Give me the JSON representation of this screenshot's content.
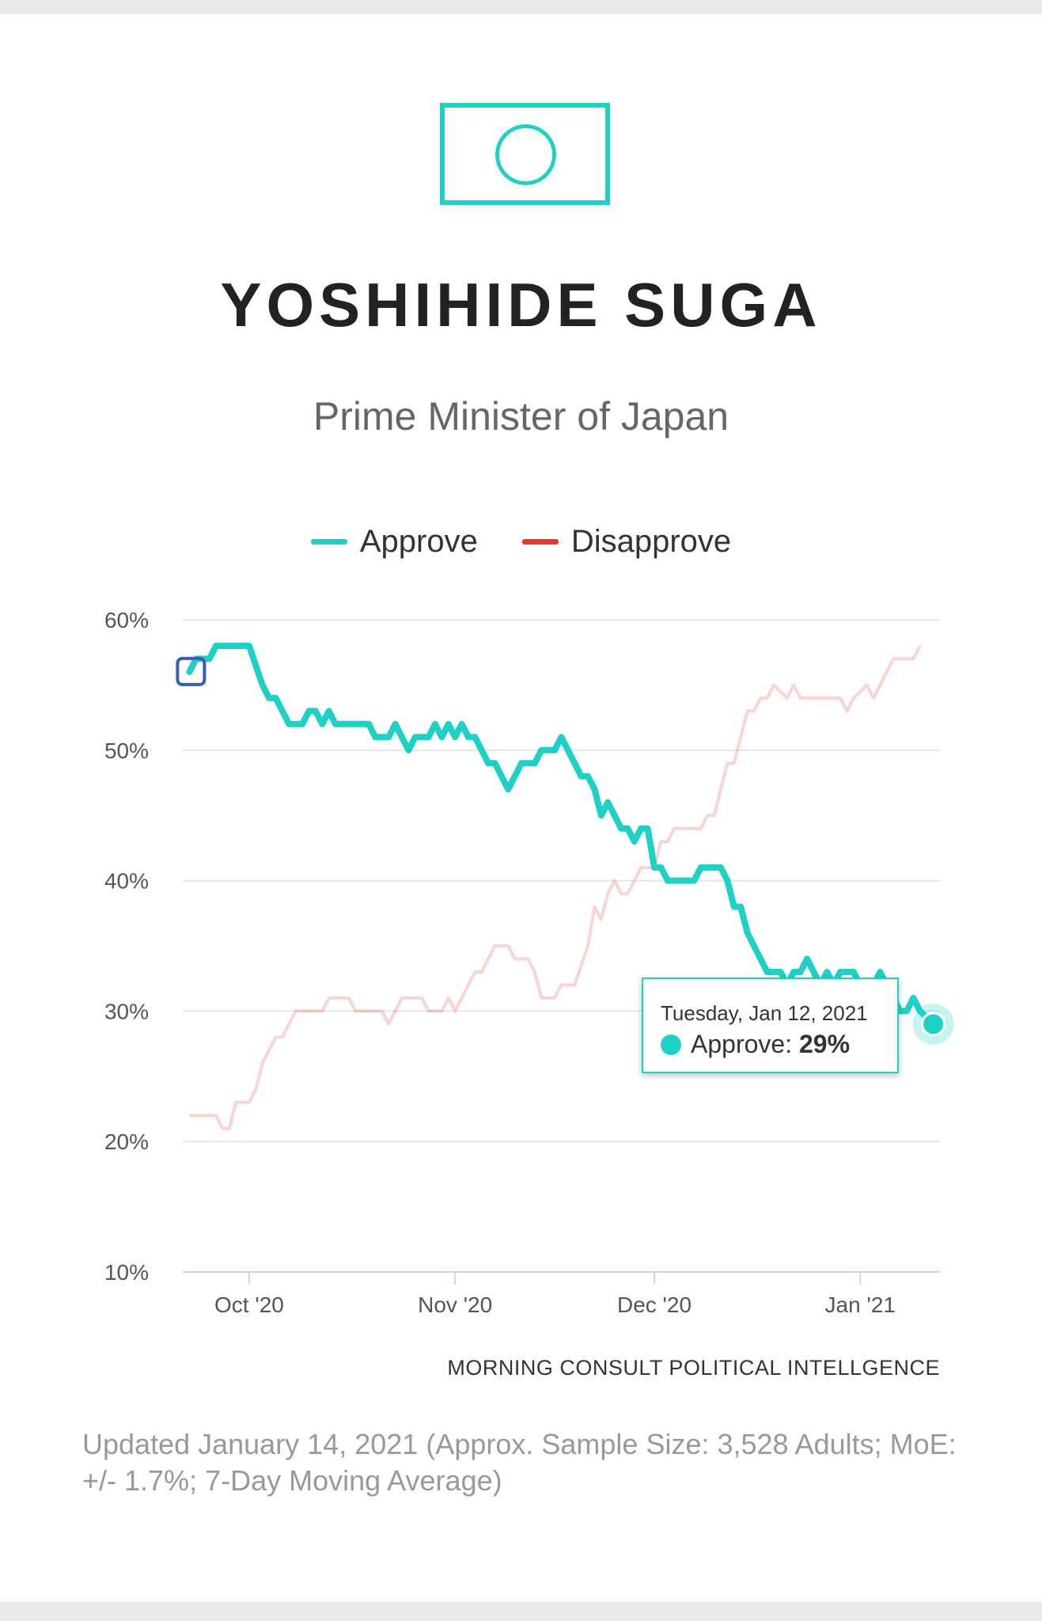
{
  "header": {
    "flag_icon": "japan-flag-icon",
    "name": "YOSHIHIDE SUGA",
    "role": "Prime Minister of Japan"
  },
  "legend": {
    "items": [
      {
        "label": "Approve",
        "color": "#1fd1c4"
      },
      {
        "label": "Disapprove",
        "color": "#e53935"
      }
    ]
  },
  "tooltip": {
    "date": "Tuesday, Jan 12, 2021",
    "series": "Approve",
    "value": "29%"
  },
  "source": "MORNING CONSULT POLITICAL INTELLGENCE",
  "footnote": "Updated January 14, 2021 (Approx. Sample Size: 3,528 Adults; MoE: +/- 1.7%; 7-Day Moving Average)",
  "chart_data": {
    "type": "line",
    "title": "",
    "xlabel": "",
    "ylabel": "",
    "ylim": [
      10,
      60
    ],
    "yticks": [
      10,
      20,
      30,
      40,
      50,
      60
    ],
    "ytick_labels": [
      "10%",
      "20%",
      "30%",
      "40%",
      "50%",
      "60%"
    ],
    "xticks": [
      {
        "date": "2020-10-01",
        "label": "Oct '20"
      },
      {
        "date": "2020-11-01",
        "label": "Nov '20"
      },
      {
        "date": "2020-12-01",
        "label": "Dec '20"
      },
      {
        "date": "2021-01-01",
        "label": "Jan '21"
      }
    ],
    "xlim": [
      "2020-09-21",
      "2021-01-13"
    ],
    "grid": true,
    "legend": "top-center",
    "series": [
      {
        "name": "Approve",
        "color": "#1fd1c4",
        "points": [
          [
            "2020-09-22",
            56
          ],
          [
            "2020-09-23",
            57
          ],
          [
            "2020-09-25",
            57
          ],
          [
            "2020-09-26",
            58
          ],
          [
            "2020-09-28",
            58
          ],
          [
            "2020-09-30",
            58
          ],
          [
            "2020-10-01",
            58
          ],
          [
            "2020-10-03",
            55
          ],
          [
            "2020-10-04",
            54
          ],
          [
            "2020-10-05",
            54
          ],
          [
            "2020-10-07",
            52
          ],
          [
            "2020-10-09",
            52
          ],
          [
            "2020-10-10",
            53
          ],
          [
            "2020-10-11",
            53
          ],
          [
            "2020-10-12",
            52
          ],
          [
            "2020-10-13",
            53
          ],
          [
            "2020-10-14",
            52
          ],
          [
            "2020-10-16",
            52
          ],
          [
            "2020-10-19",
            52
          ],
          [
            "2020-10-20",
            51
          ],
          [
            "2020-10-22",
            51
          ],
          [
            "2020-10-23",
            52
          ],
          [
            "2020-10-25",
            50
          ],
          [
            "2020-10-26",
            51
          ],
          [
            "2020-10-28",
            51
          ],
          [
            "2020-10-29",
            52
          ],
          [
            "2020-10-30",
            51
          ],
          [
            "2020-10-31",
            52
          ],
          [
            "2020-11-01",
            51
          ],
          [
            "2020-11-02",
            52
          ],
          [
            "2020-11-03",
            51
          ],
          [
            "2020-11-04",
            51
          ],
          [
            "2020-11-06",
            49
          ],
          [
            "2020-11-07",
            49
          ],
          [
            "2020-11-09",
            47
          ],
          [
            "2020-11-11",
            49
          ],
          [
            "2020-11-13",
            49
          ],
          [
            "2020-11-14",
            50
          ],
          [
            "2020-11-16",
            50
          ],
          [
            "2020-11-17",
            51
          ],
          [
            "2020-11-19",
            49
          ],
          [
            "2020-11-20",
            48
          ],
          [
            "2020-11-21",
            48
          ],
          [
            "2020-11-22",
            47
          ],
          [
            "2020-11-23",
            45
          ],
          [
            "2020-11-24",
            46
          ],
          [
            "2020-11-26",
            44
          ],
          [
            "2020-11-27",
            44
          ],
          [
            "2020-11-28",
            43
          ],
          [
            "2020-11-29",
            44
          ],
          [
            "2020-11-30",
            44
          ],
          [
            "2020-12-01",
            41
          ],
          [
            "2020-12-02",
            41
          ],
          [
            "2020-12-03",
            40
          ],
          [
            "2020-12-05",
            40
          ],
          [
            "2020-12-07",
            40
          ],
          [
            "2020-12-08",
            41
          ],
          [
            "2020-12-11",
            41
          ],
          [
            "2020-12-12",
            40
          ],
          [
            "2020-12-13",
            38
          ],
          [
            "2020-12-14",
            38
          ],
          [
            "2020-12-15",
            36
          ],
          [
            "2020-12-17",
            34
          ],
          [
            "2020-12-18",
            33
          ],
          [
            "2020-12-20",
            33
          ],
          [
            "2020-12-21",
            32
          ],
          [
            "2020-12-22",
            33
          ],
          [
            "2020-12-23",
            33
          ],
          [
            "2020-12-24",
            34
          ],
          [
            "2020-12-25",
            33
          ],
          [
            "2020-12-26",
            32
          ],
          [
            "2020-12-27",
            33
          ],
          [
            "2020-12-28",
            32
          ],
          [
            "2020-12-29",
            33
          ],
          [
            "2020-12-31",
            33
          ],
          [
            "2021-01-01",
            32
          ],
          [
            "2021-01-02",
            32
          ],
          [
            "2021-01-03",
            32
          ],
          [
            "2021-01-04",
            33
          ],
          [
            "2021-01-05",
            32
          ],
          [
            "2021-01-06",
            31
          ],
          [
            "2021-01-07",
            30
          ],
          [
            "2021-01-08",
            30
          ],
          [
            "2021-01-09",
            31
          ],
          [
            "2021-01-10",
            30
          ],
          [
            "2021-01-12",
            29
          ]
        ]
      },
      {
        "name": "Disapprove",
        "color": "#e53935",
        "points": [
          [
            "2020-09-22",
            22
          ],
          [
            "2020-09-26",
            22
          ],
          [
            "2020-09-27",
            21
          ],
          [
            "2020-09-28",
            21
          ],
          [
            "2020-09-29",
            23
          ],
          [
            "2020-10-01",
            23
          ],
          [
            "2020-10-02",
            24
          ],
          [
            "2020-10-03",
            26
          ],
          [
            "2020-10-05",
            28
          ],
          [
            "2020-10-06",
            28
          ],
          [
            "2020-10-08",
            30
          ],
          [
            "2020-10-10",
            30
          ],
          [
            "2020-10-12",
            30
          ],
          [
            "2020-10-13",
            31
          ],
          [
            "2020-10-16",
            31
          ],
          [
            "2020-10-17",
            30
          ],
          [
            "2020-10-21",
            30
          ],
          [
            "2020-10-22",
            29
          ],
          [
            "2020-10-24",
            31
          ],
          [
            "2020-10-27",
            31
          ],
          [
            "2020-10-28",
            30
          ],
          [
            "2020-10-30",
            30
          ],
          [
            "2020-10-31",
            31
          ],
          [
            "2020-11-01",
            30
          ],
          [
            "2020-11-03",
            32
          ],
          [
            "2020-11-04",
            33
          ],
          [
            "2020-11-05",
            33
          ],
          [
            "2020-11-07",
            35
          ],
          [
            "2020-11-09",
            35
          ],
          [
            "2020-11-10",
            34
          ],
          [
            "2020-11-12",
            34
          ],
          [
            "2020-11-13",
            33
          ],
          [
            "2020-11-14",
            31
          ],
          [
            "2020-11-16",
            31
          ],
          [
            "2020-11-17",
            32
          ],
          [
            "2020-11-19",
            32
          ],
          [
            "2020-11-21",
            35
          ],
          [
            "2020-11-22",
            38
          ],
          [
            "2020-11-23",
            37
          ],
          [
            "2020-11-24",
            39
          ],
          [
            "2020-11-25",
            40
          ],
          [
            "2020-11-26",
            39
          ],
          [
            "2020-11-27",
            39
          ],
          [
            "2020-11-29",
            41
          ],
          [
            "2020-12-01",
            41
          ],
          [
            "2020-12-02",
            43
          ],
          [
            "2020-12-03",
            43
          ],
          [
            "2020-12-04",
            44
          ],
          [
            "2020-12-07",
            44
          ],
          [
            "2020-12-08",
            44
          ],
          [
            "2020-12-09",
            45
          ],
          [
            "2020-12-10",
            45
          ],
          [
            "2020-12-11",
            47
          ],
          [
            "2020-12-12",
            49
          ],
          [
            "2020-12-13",
            49
          ],
          [
            "2020-12-15",
            53
          ],
          [
            "2020-12-16",
            53
          ],
          [
            "2020-12-17",
            54
          ],
          [
            "2020-12-18",
            54
          ],
          [
            "2020-12-19",
            55
          ],
          [
            "2020-12-21",
            54
          ],
          [
            "2020-12-22",
            55
          ],
          [
            "2020-12-23",
            54
          ],
          [
            "2020-12-26",
            54
          ],
          [
            "2020-12-27",
            54
          ],
          [
            "2020-12-29",
            54
          ],
          [
            "2020-12-30",
            53
          ],
          [
            "2020-12-31",
            54
          ],
          [
            "2021-01-02",
            55
          ],
          [
            "2021-01-03",
            54
          ],
          [
            "2021-01-05",
            56
          ],
          [
            "2021-01-06",
            57
          ],
          [
            "2021-01-09",
            57
          ],
          [
            "2021-01-10",
            58
          ]
        ]
      }
    ]
  }
}
